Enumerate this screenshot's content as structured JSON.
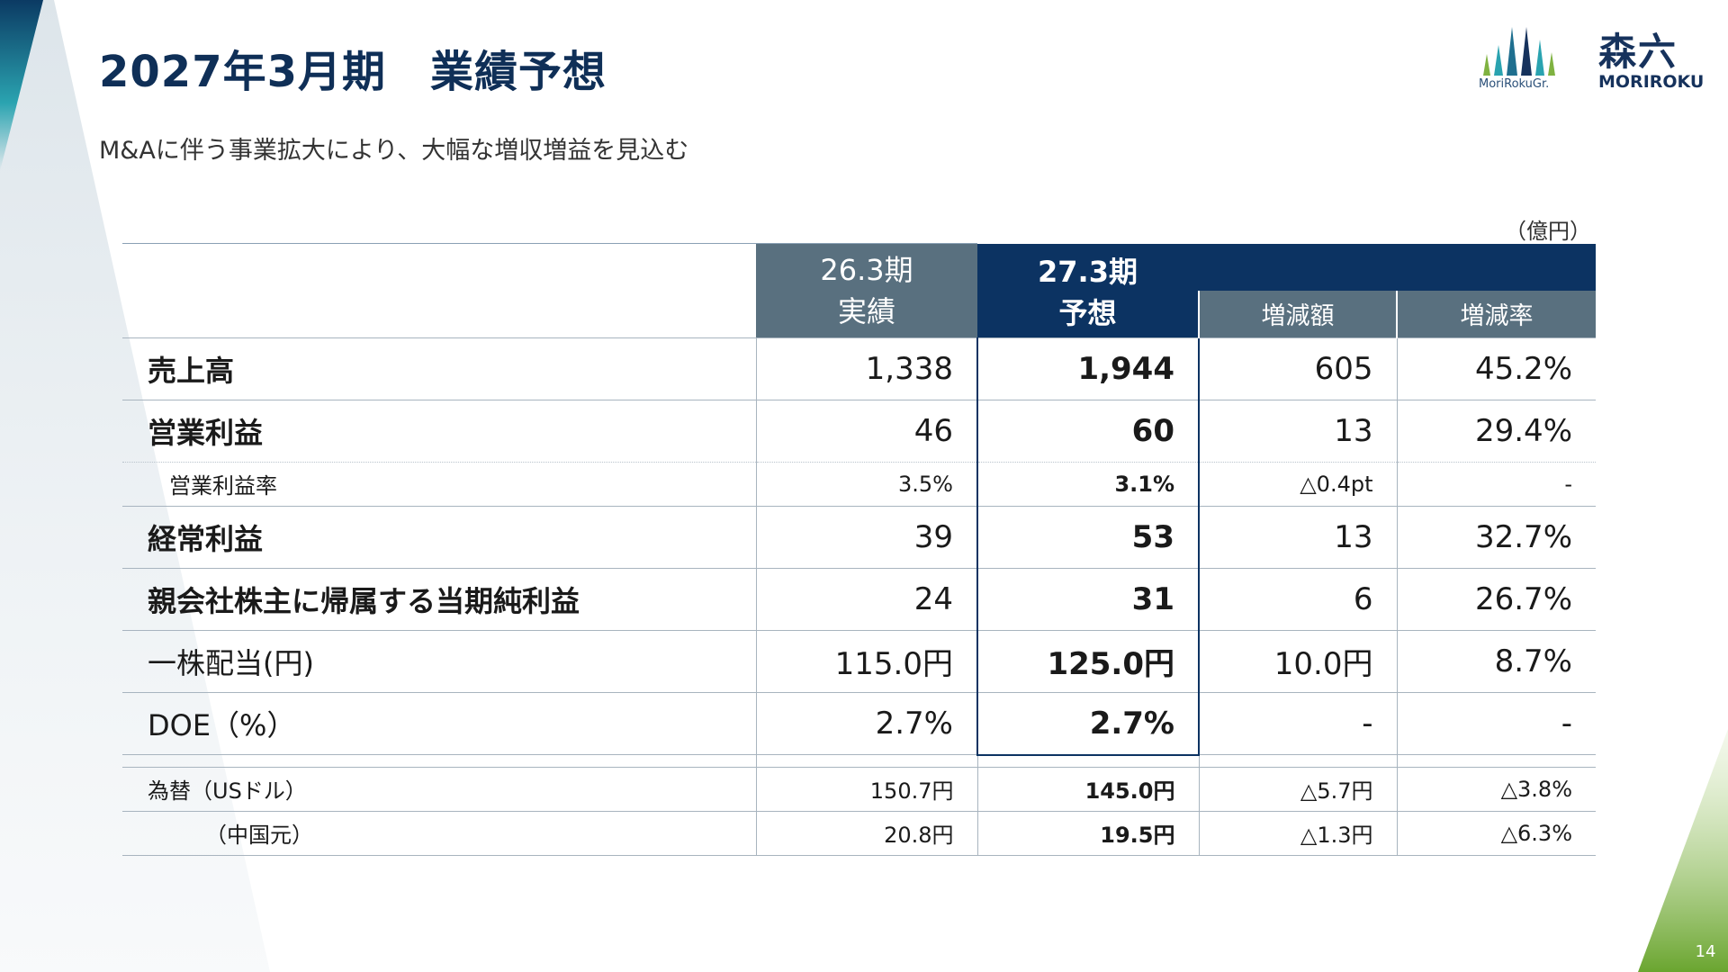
{
  "header": {
    "title": "2027年3月期　業績予想",
    "subtitle": "M&Aに伴う事業拡大により、大幅な増収増益を見込む"
  },
  "logo": {
    "mark_text": "MoriRokuGr.",
    "kanji": "森六",
    "roman": "MORIROKU"
  },
  "unit_label": "（億円）",
  "table": {
    "headers": {
      "prev_line1": "26.3期",
      "prev_line2": "実績",
      "forecast_line1": "27.3期",
      "forecast_line2": "予想",
      "diff": "増減額",
      "rate": "増減率"
    },
    "rows": [
      {
        "label": "売上高",
        "prev": "1,338",
        "forecast": "1,944",
        "diff": "605",
        "rate": "45.2%"
      },
      {
        "label": "営業利益",
        "prev": "46",
        "forecast": "60",
        "diff": "13",
        "rate": "29.4%"
      },
      {
        "label": "営業利益率",
        "prev": "3.5%",
        "forecast": "3.1%",
        "diff": "△0.4pt",
        "rate": "-"
      },
      {
        "label": "経常利益",
        "prev": "39",
        "forecast": "53",
        "diff": "13",
        "rate": "32.7%"
      },
      {
        "label": "親会社株主に帰属する当期純利益",
        "prev": "24",
        "forecast": "31",
        "diff": "6",
        "rate": "26.7%"
      },
      {
        "label": "一株配当(円)",
        "prev": "115.0円",
        "forecast": "125.0円",
        "diff": "10.0円",
        "rate": "8.7%"
      },
      {
        "label": "DOE（%）",
        "prev": "2.7%",
        "forecast": "2.7%",
        "diff": "-",
        "rate": "-"
      }
    ],
    "fx_rows": [
      {
        "label": "為替（USドル）",
        "prev": "150.7円",
        "forecast": "145.0円",
        "diff": "△5.7円",
        "rate": "△3.8%"
      },
      {
        "label": "（中国元）",
        "prev": "20.8円",
        "forecast": "19.5円",
        "diff": "△1.3円",
        "rate": "△6.3%"
      }
    ]
  },
  "page_number": "14",
  "colors": {
    "title": "#0f2f57",
    "header_gray": "#59707f",
    "header_navy": "#0c3362",
    "accent_teal": "#2aa3b0",
    "accent_green": "#7fb241"
  }
}
